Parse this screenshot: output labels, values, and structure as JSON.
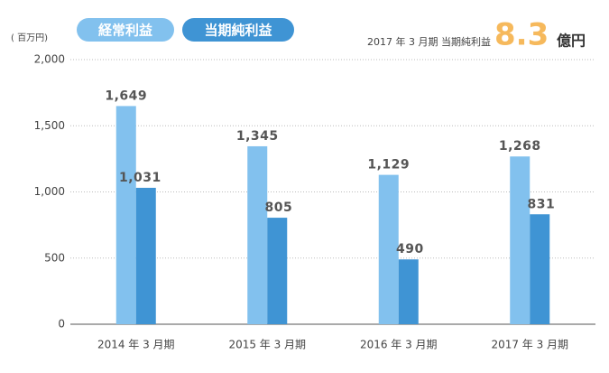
{
  "chart_data": {
    "type": "bar",
    "unit_label": "( 百万円)",
    "categories": [
      "2014 年 3 月期",
      "2015 年 3 月期",
      "2016 年 3 月期",
      "2017 年 3 月期"
    ],
    "series": [
      {
        "name": "経常利益",
        "color": "#82c1ee",
        "values": [
          1649,
          1345,
          1129,
          1268
        ],
        "value_labels": [
          "1,649",
          "1,345",
          "1,129",
          "1,268"
        ]
      },
      {
        "name": "当期純利益",
        "color": "#3f94d4",
        "values": [
          1031,
          805,
          490,
          831
        ],
        "value_labels": [
          "1,031",
          "805",
          "490",
          "831"
        ]
      }
    ],
    "ylim": [
      0,
      2000
    ],
    "yticks": [
      0,
      500,
      {
        "value": 1000,
        "label": "1,000"
      },
      {
        "value": 1500,
        "label": "1,500"
      },
      {
        "value": 2000,
        "label": "2,000"
      }
    ],
    "grid": true,
    "annotation": {
      "label": "2017 年 3 月期 当期純利益",
      "value": 8.3,
      "unit": "億円",
      "color": "#f6b95c"
    }
  }
}
